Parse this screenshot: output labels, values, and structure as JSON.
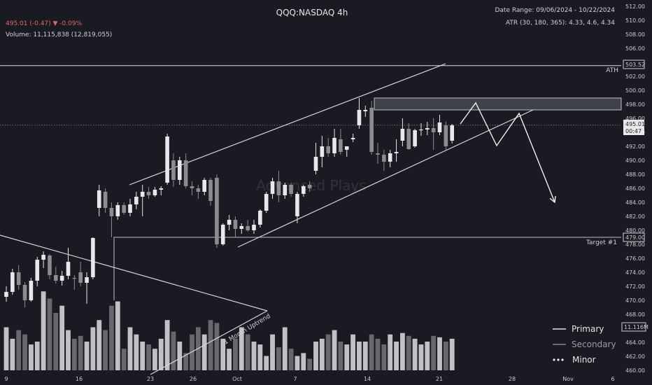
{
  "header": {
    "title": "QQQ:NASDAQ 4h",
    "price_line": "495.01 (-0.47) ▼ -0.09%",
    "volume_line": "Volume: 11,115,838 (12,819,055)",
    "date_range": "Date Range: 09/06/2024 - 10/22/2024",
    "atr": "ATR (30, 180, 365): 4.33, 4.6, 4.34"
  },
  "watermark": "Advanced Plays",
  "annotations": {
    "ath_label": "ATH",
    "target_label": "Target #1",
    "wedge_label": "1 Month Uptrend"
  },
  "price_tags": {
    "ath": "503.52",
    "last": "495.01",
    "countdown": "00:47",
    "target": "479.00",
    "volume": "11.116M"
  },
  "legend": {
    "primary": "Primary",
    "secondary": "Secondary",
    "minor": "Minor"
  },
  "colors": {
    "background": "#1a1b22",
    "candle_up": "#e8e8ea",
    "candle_down": "#8a8c90",
    "line": "#d8d8dc",
    "red": "#e0666c"
  },
  "chart_data": {
    "type": "candlestick",
    "title": "QQQ:NASDAQ 4h",
    "ylim": [
      460,
      512
    ],
    "y_ticks": [
      460,
      462,
      464,
      466,
      468,
      470,
      472,
      474,
      476,
      478,
      480,
      482,
      484,
      486,
      488,
      490,
      492,
      494,
      496,
      498,
      500,
      502,
      504,
      506,
      508,
      510,
      512
    ],
    "x_tick_labels": [
      "9",
      "16",
      "23",
      "26",
      "Oct",
      "7",
      "14",
      "21",
      "28",
      "Nov",
      "6"
    ],
    "levels": {
      "ath": 503.52,
      "target": 479.0,
      "last": 495.01
    },
    "resistance_zone": [
      497.2,
      498.9
    ],
    "candles": [
      [
        470.5,
        472.0,
        469.8,
        471.2
      ],
      [
        471.2,
        474.5,
        470.8,
        474.0
      ],
      [
        474.0,
        475.0,
        471.5,
        472.2
      ],
      [
        472.2,
        472.6,
        469.0,
        470.0
      ],
      [
        470.0,
        473.2,
        469.8,
        472.8
      ],
      [
        472.8,
        476.2,
        472.0,
        475.8
      ],
      [
        475.8,
        477.0,
        474.6,
        476.5
      ],
      [
        476.4,
        476.6,
        473.0,
        473.6
      ],
      [
        473.6,
        474.8,
        472.4,
        472.8
      ],
      [
        472.8,
        474.2,
        472.1,
        473.5
      ],
      [
        473.5,
        477.5,
        473.0,
        475.5
      ],
      [
        473.2,
        473.6,
        471.5,
        473.1
      ],
      [
        474.0,
        475.5,
        472.0,
        472.5
      ],
      [
        472.5,
        474.0,
        469.5,
        473.3
      ],
      [
        473.3,
        479.0,
        473.0,
        478.9
      ],
      [
        483.2,
        486.5,
        482.0,
        485.7
      ],
      [
        485.5,
        486.0,
        482.5,
        483.2
      ],
      [
        483.2,
        484.0,
        479.0,
        482.0
      ],
      [
        482.0,
        484.0,
        481.5,
        483.6
      ],
      [
        483.6,
        484.0,
        482.2,
        482.5
      ],
      [
        482.5,
        484.5,
        482.0,
        483.7
      ],
      [
        483.7,
        485.5,
        483.0,
        484.8
      ],
      [
        484.8,
        486.5,
        482.0,
        485.5
      ],
      [
        485.5,
        486.2,
        484.5,
        485.0
      ],
      [
        485.0,
        486.2,
        484.8,
        485.8
      ],
      [
        485.8,
        486.3,
        485.0,
        486.0
      ],
      [
        486.8,
        493.8,
        486.5,
        493.4
      ],
      [
        490.0,
        491.0,
        486.2,
        487.2
      ],
      [
        487.2,
        490.5,
        486.5,
        490.0
      ],
      [
        490.0,
        491.0,
        486.0,
        486.3
      ],
      [
        486.3,
        487.0,
        485.0,
        486.0
      ],
      [
        486.0,
        486.5,
        484.5,
        485.5
      ],
      [
        485.5,
        487.5,
        485.0,
        487.2
      ],
      [
        487.2,
        487.5,
        483.5,
        484.2
      ],
      [
        487.5,
        488.0,
        477.5,
        478.0
      ],
      [
        478.0,
        481.0,
        477.8,
        480.8
      ],
      [
        480.8,
        482.2,
        480.0,
        481.5
      ],
      [
        481.5,
        482.0,
        479.0,
        480.2
      ],
      [
        480.2,
        481.0,
        479.5,
        480.6
      ],
      [
        480.6,
        481.5,
        479.8,
        480.0
      ],
      [
        480.0,
        481.5,
        479.5,
        480.8
      ],
      [
        480.8,
        483.0,
        480.4,
        482.8
      ],
      [
        482.8,
        485.5,
        482.5,
        485.2
      ],
      [
        485.2,
        487.5,
        484.5,
        487.0
      ],
      [
        487.0,
        488.5,
        484.0,
        485.0
      ],
      [
        485.0,
        486.8,
        484.5,
        486.5
      ],
      [
        486.5,
        486.8,
        484.8,
        485.2
      ],
      [
        482.0,
        485.5,
        481.0,
        485.2
      ],
      [
        485.2,
        486.5,
        484.8,
        486.3
      ],
      [
        486.5,
        487.0,
        485.5,
        486.0
      ],
      [
        488.5,
        492.5,
        488.0,
        490.5
      ],
      [
        490.5,
        493.5,
        489.0,
        492.0
      ],
      [
        492.0,
        493.2,
        490.5,
        491.0
      ],
      [
        491.0,
        494.5,
        490.5,
        493.2
      ],
      [
        493.0,
        494.5,
        490.8,
        491.2
      ],
      [
        491.5,
        492.0,
        490.5,
        492.0
      ],
      [
        493.0,
        493.8,
        492.6,
        493.2
      ],
      [
        495.0,
        498.9,
        494.5,
        497.2
      ],
      [
        497.0,
        497.8,
        496.2,
        497.2
      ],
      [
        497.5,
        498.5,
        490.8,
        491.2
      ],
      [
        491.0,
        492.5,
        489.5,
        490.8
      ],
      [
        490.8,
        491.5,
        488.5,
        489.8
      ],
      [
        489.8,
        491.5,
        489.0,
        491.0
      ],
      [
        491.0,
        493.0,
        489.8,
        491.2
      ],
      [
        492.8,
        496.0,
        492.0,
        494.5
      ],
      [
        494.5,
        495.3,
        491.5,
        491.6
      ],
      [
        492.0,
        494.5,
        491.8,
        494.3
      ],
      [
        494.3,
        495.3,
        493.5,
        494.4
      ],
      [
        494.4,
        495.5,
        493.6,
        494.6
      ],
      [
        494.6,
        496.0,
        491.5,
        494.0
      ],
      [
        494.0,
        496.5,
        493.6,
        495.4
      ],
      [
        495.0,
        495.5,
        491.5,
        492.0
      ],
      [
        492.8,
        495.2,
        492.4,
        495.0
      ]
    ],
    "volume": [
      30,
      22,
      28,
      25,
      18,
      20,
      55,
      50,
      40,
      45,
      28,
      22,
      24,
      20,
      30,
      35,
      28,
      45,
      48,
      15,
      30,
      25,
      20,
      18,
      15,
      22,
      35,
      27,
      20,
      12,
      25,
      30,
      25,
      35,
      33,
      22,
      15,
      22,
      30,
      25,
      20,
      18,
      10,
      25,
      16,
      30,
      15,
      10,
      12,
      8,
      20,
      22,
      25,
      28,
      20,
      18,
      25,
      20,
      20,
      25,
      22,
      18,
      25,
      20,
      26,
      24,
      22,
      18,
      20,
      24,
      23,
      20,
      22
    ],
    "drawings": {
      "upper_channel": [
        [
          185,
          264
        ],
        [
          637,
          91
        ]
      ],
      "lower_channel": [
        [
          340,
          353
        ],
        [
          762,
          157
        ]
      ],
      "down_trendline": [
        [
          0,
          336
        ],
        [
          382,
          444
        ]
      ],
      "rising_trendline": [
        [
          215,
          535
        ],
        [
          382,
          444
        ]
      ],
      "zigzag": [
        [
          658,
          177
        ],
        [
          680,
          147
        ],
        [
          710,
          208
        ],
        [
          742,
          162
        ],
        [
          793,
          289
        ]
      ]
    }
  }
}
